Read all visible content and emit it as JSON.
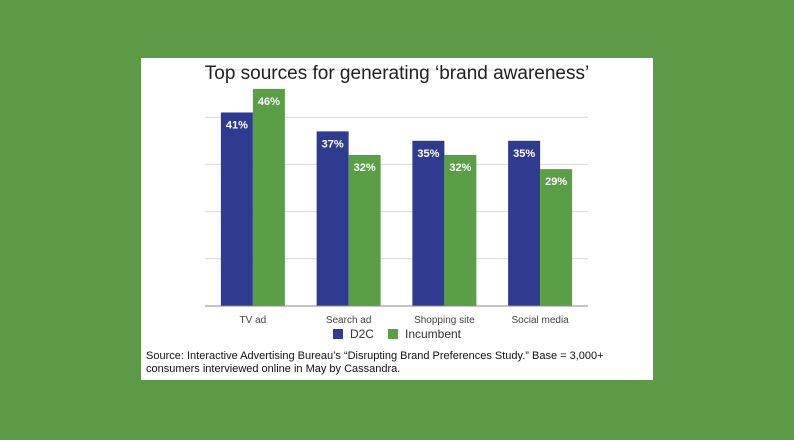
{
  "chart_data": {
    "type": "bar",
    "title": "Top sources for generating ‘brand awareness’",
    "xlabel": "",
    "ylabel": "",
    "categories": [
      "TV ad",
      "Search ad",
      "Shopping site",
      "Social media"
    ],
    "series": [
      {
        "name": "D2C",
        "values": [
          41,
          37,
          35,
          35
        ],
        "labels": [
          "41%",
          "37%",
          "35%",
          "35%"
        ],
        "color": "#2e3b8f"
      },
      {
        "name": "Incumbent",
        "values": [
          46,
          32,
          32,
          29
        ],
        "labels": [
          "46%",
          "32%",
          "32%",
          "29%"
        ],
        "color": "#5a9e45"
      }
    ],
    "ylim": [
      0,
      50
    ],
    "gridlines": [
      0,
      10,
      20,
      30,
      40,
      50
    ],
    "grid": true,
    "legend_position": "bottom",
    "data_label_color": "#ffffff",
    "grid_color": "#d9d9d9",
    "axis_color": "#888888"
  },
  "source_note": "Source: Interactive Advertising Bureau’s “Disrupting Brand Preferences Study.” Base = 3,000+ consumers interviewed online in May by Cassandra.",
  "colors": {
    "page_background": "#5c9a48",
    "card_background": "#ffffff"
  }
}
